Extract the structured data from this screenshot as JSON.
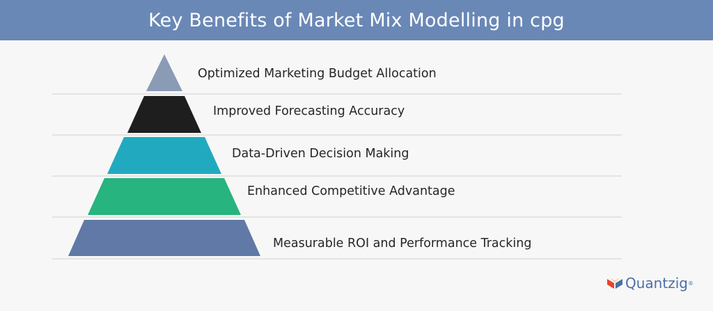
{
  "header": {
    "title": "Key Benefits of Market Mix Modelling in cpg"
  },
  "levels": [
    {
      "label": "Optimized Marketing Budget Allocation",
      "color": "#8a9bb5"
    },
    {
      "label": "Improved Forecasting Accuracy",
      "color": "#1e1e1e"
    },
    {
      "label": "Data-Driven Decision Making",
      "color": "#21aabf"
    },
    {
      "label": "Enhanced Competitive Advantage",
      "color": "#27b47f"
    },
    {
      "label": "Measurable ROI and Performance Tracking",
      "color": "#6079a6"
    }
  ],
  "logo": {
    "name": "Quantzig",
    "trademark": "®"
  }
}
